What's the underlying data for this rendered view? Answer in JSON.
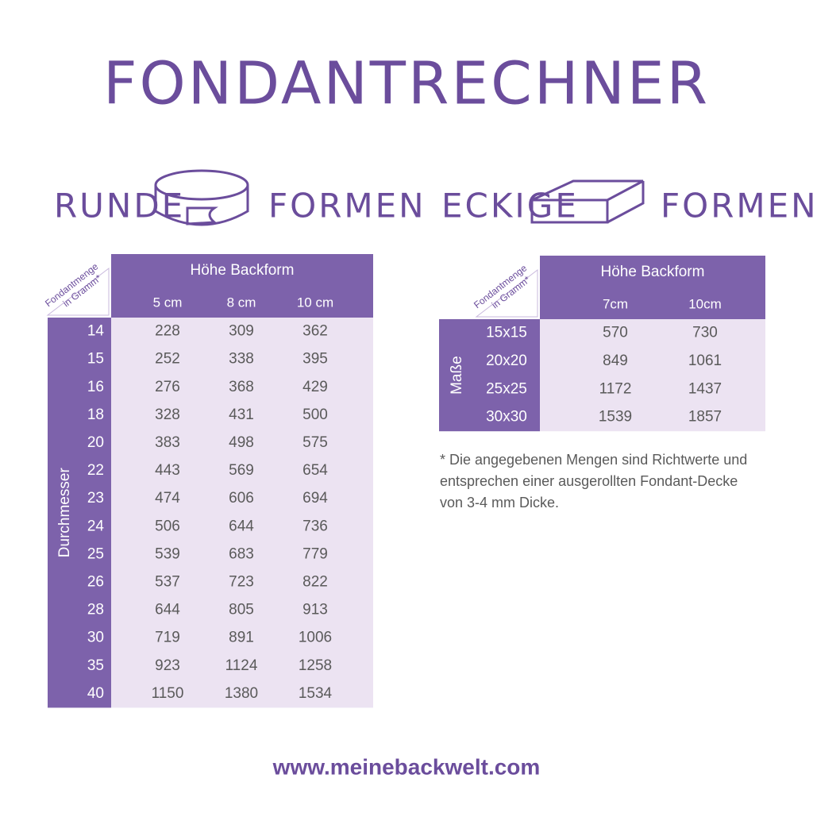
{
  "title": "FONDANTRECHNER",
  "round": {
    "heading_left": "RUNDE",
    "heading_right": "FORMEN",
    "header": "Höhe Backform",
    "corner": [
      "Fondantmenge",
      "in Gramm*"
    ],
    "columns": [
      "5 cm",
      "8 cm",
      "10 cm"
    ],
    "row_axis": "Durchmesser",
    "rows": [
      {
        "label": 14,
        "values": [
          228,
          309,
          362
        ]
      },
      {
        "label": 15,
        "values": [
          252,
          338,
          395
        ]
      },
      {
        "label": 16,
        "values": [
          276,
          368,
          429
        ]
      },
      {
        "label": 18,
        "values": [
          328,
          431,
          500
        ]
      },
      {
        "label": 20,
        "values": [
          383,
          498,
          575
        ]
      },
      {
        "label": 22,
        "values": [
          443,
          569,
          654
        ]
      },
      {
        "label": 23,
        "values": [
          474,
          606,
          694
        ]
      },
      {
        "label": 24,
        "values": [
          506,
          644,
          736
        ]
      },
      {
        "label": 25,
        "values": [
          539,
          683,
          779
        ]
      },
      {
        "label": 26,
        "values": [
          537,
          723,
          822
        ]
      },
      {
        "label": 28,
        "values": [
          644,
          805,
          913
        ]
      },
      {
        "label": 30,
        "values": [
          719,
          891,
          1006
        ]
      },
      {
        "label": 35,
        "values": [
          923,
          1124,
          1258
        ]
      },
      {
        "label": 40,
        "values": [
          1150,
          1380,
          1534
        ]
      }
    ]
  },
  "square": {
    "heading_left": "ECKIGE",
    "heading_right": "FORMEN",
    "header": "Höhe Backform",
    "corner": [
      "Fondantmenge",
      "in Gramm*"
    ],
    "columns": [
      "7cm",
      "10cm"
    ],
    "row_axis": "Maße",
    "rows": [
      {
        "label": "15x15",
        "values": [
          570,
          730
        ]
      },
      {
        "label": "20x20",
        "values": [
          849,
          1061
        ]
      },
      {
        "label": "25x25",
        "values": [
          1172,
          1437
        ]
      },
      {
        "label": "30x30",
        "values": [
          1539,
          1857
        ]
      }
    ]
  },
  "note": [
    "* Die angegebenen Mengen sind Richtwerte und",
    "entsprechen einer ausgerollten Fondant-Decke",
    "von 3-4 mm Dicke."
  ],
  "footer": "www.meinebackwelt.com"
}
